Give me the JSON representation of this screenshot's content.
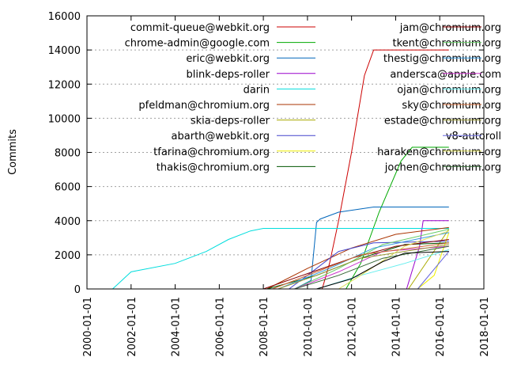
{
  "chart_data": {
    "type": "line",
    "title": "",
    "xlabel": "",
    "ylabel": "Commits",
    "xlim": [
      "2000-01-01",
      "2018-01-01"
    ],
    "ylim": [
      0,
      16000
    ],
    "x_ticks": [
      "2000-01-01",
      "2002-01-01",
      "2004-01-01",
      "2006-01-01",
      "2008-01-01",
      "2010-01-01",
      "2012-01-01",
      "2014-01-01",
      "2016-01-01",
      "2018-01-01"
    ],
    "y_ticks": [
      0,
      2000,
      4000,
      6000,
      8000,
      10000,
      12000,
      14000,
      16000
    ],
    "grid": "horizontal",
    "legend_placement": "top, two columns",
    "series": [
      {
        "name": "commit-queue@webkit.org",
        "color": "#cc0000",
        "points": [
          [
            "2010-09-01",
            0
          ],
          [
            "2011-01-01",
            1500
          ],
          [
            "2011-06-01",
            4000
          ],
          [
            "2012-01-01",
            8000
          ],
          [
            "2012-08-01",
            12500
          ],
          [
            "2013-01-01",
            14000
          ],
          [
            "2016-06-01",
            14000
          ]
        ]
      },
      {
        "name": "chrome-admin@google.com",
        "color": "#00aa00",
        "points": [
          [
            "2011-10-01",
            0
          ],
          [
            "2012-06-01",
            1500
          ],
          [
            "2013-04-01",
            4500
          ],
          [
            "2014-04-01",
            7500
          ],
          [
            "2014-10-01",
            8300
          ],
          [
            "2016-06-01",
            8300
          ]
        ]
      },
      {
        "name": "eric@webkit.org",
        "color": "#0066bb",
        "points": [
          [
            "2009-06-01",
            0
          ],
          [
            "2010-03-01",
            500
          ],
          [
            "2010-06-01",
            3900
          ],
          [
            "2010-08-01",
            4100
          ],
          [
            "2011-06-01",
            4500
          ],
          [
            "2013-01-01",
            4800
          ],
          [
            "2016-06-01",
            4800
          ]
        ]
      },
      {
        "name": "blink-deps-roller",
        "color": "#9900cc",
        "points": [
          [
            "2014-07-01",
            0
          ],
          [
            "2015-02-01",
            2500
          ],
          [
            "2015-04-01",
            4000
          ],
          [
            "2016-06-01",
            4000
          ]
        ]
      },
      {
        "name": "darin",
        "color": "#00dddd",
        "points": [
          [
            "2001-03-01",
            0
          ],
          [
            "2001-06-01",
            300
          ],
          [
            "2002-01-01",
            1000
          ],
          [
            "2004-01-01",
            1500
          ],
          [
            "2005-06-01",
            2200
          ],
          [
            "2006-06-01",
            2900
          ],
          [
            "2007-06-01",
            3400
          ],
          [
            "2008-01-01",
            3550
          ],
          [
            "2016-06-01",
            3550
          ]
        ]
      },
      {
        "name": "pfeldman@chromium.org",
        "color": "#aa3300",
        "points": [
          [
            "2008-03-01",
            0
          ],
          [
            "2010-01-01",
            1200
          ],
          [
            "2012-01-01",
            2400
          ],
          [
            "2014-01-01",
            3200
          ],
          [
            "2016-06-01",
            3600
          ]
        ]
      },
      {
        "name": "skia-deps-roller",
        "color": "#aaaa00",
        "points": [
          [
            "2014-08-01",
            0
          ],
          [
            "2016-06-01",
            3500
          ]
        ]
      },
      {
        "name": "abarth@webkit.org",
        "color": "#4444cc",
        "points": [
          [
            "2009-03-01",
            0
          ],
          [
            "2010-01-01",
            800
          ],
          [
            "2011-06-01",
            2200
          ],
          [
            "2013-01-01",
            2700
          ],
          [
            "2016-06-01",
            2800
          ]
        ]
      },
      {
        "name": "tfarina@chromium.org",
        "color": "#eeee00",
        "points": [
          [
            "2015-01-01",
            0
          ],
          [
            "2015-10-01",
            800
          ],
          [
            "2016-06-01",
            3300
          ]
        ]
      },
      {
        "name": "thakis@chromium.org",
        "color": "#005500",
        "points": [
          [
            "2008-03-01",
            0
          ],
          [
            "2010-06-01",
            800
          ],
          [
            "2012-06-01",
            1800
          ],
          [
            "2014-06-01",
            2600
          ],
          [
            "2016-06-01",
            2700
          ]
        ]
      },
      {
        "name": "jam@chromium.org",
        "color": "#880000",
        "points": [
          [
            "2008-01-01",
            0
          ],
          [
            "2010-01-01",
            900
          ],
          [
            "2012-01-01",
            1800
          ],
          [
            "2014-01-01",
            2500
          ],
          [
            "2016-06-01",
            2900
          ]
        ]
      },
      {
        "name": "tkent@chromium.org",
        "color": "#66cc66",
        "points": [
          [
            "2009-06-01",
            0
          ],
          [
            "2011-06-01",
            1200
          ],
          [
            "2013-06-01",
            2600
          ],
          [
            "2016-06-01",
            3500
          ]
        ]
      },
      {
        "name": "thestig@chromium.org",
        "color": "#3399dd",
        "points": [
          [
            "2008-09-01",
            0
          ],
          [
            "2011-01-01",
            1200
          ],
          [
            "2013-01-01",
            2400
          ],
          [
            "2016-06-01",
            3300
          ]
        ]
      },
      {
        "name": "andersca@apple.com",
        "color": "#cc33cc",
        "points": [
          [
            "2009-06-01",
            0
          ],
          [
            "2011-06-01",
            1000
          ],
          [
            "2013-06-01",
            2200
          ],
          [
            "2016-06-01",
            2500
          ]
        ]
      },
      {
        "name": "ojan@chromium.org",
        "color": "#66eeee",
        "points": [
          [
            "2010-06-01",
            0
          ],
          [
            "2012-06-01",
            800
          ],
          [
            "2014-06-01",
            1500
          ],
          [
            "2016-06-01",
            2300
          ]
        ]
      },
      {
        "name": "sky@chromium.org",
        "color": "#cc6633",
        "points": [
          [
            "2008-06-01",
            0
          ],
          [
            "2010-06-01",
            1000
          ],
          [
            "2012-06-01",
            2000
          ],
          [
            "2016-06-01",
            2700
          ]
        ]
      },
      {
        "name": "estade@chromium.org",
        "color": "#999933",
        "points": [
          [
            "2008-09-01",
            0
          ],
          [
            "2010-06-01",
            800
          ],
          [
            "2012-06-01",
            1800
          ],
          [
            "2016-06-01",
            2600
          ]
        ]
      },
      {
        "name": "v8-autoroll",
        "color": "#6666dd",
        "points": [
          [
            "2015-01-01",
            0
          ],
          [
            "2016-06-01",
            2200
          ]
        ]
      },
      {
        "name": "haraken@chromium.org",
        "color": "#dddd55",
        "points": [
          [
            "2011-06-01",
            0
          ],
          [
            "2012-06-01",
            800
          ],
          [
            "2014-06-01",
            2500
          ],
          [
            "2016-06-01",
            3400
          ]
        ]
      },
      {
        "name": "jochen@chromium.org",
        "color": "#336633",
        "points": [
          [
            "2009-06-01",
            0
          ],
          [
            "2011-06-01",
            800
          ],
          [
            "2013-06-01",
            1800
          ],
          [
            "2016-06-01",
            2500
          ]
        ]
      },
      {
        "name": "",
        "color": "#000000",
        "points": [
          [
            "2010-06-01",
            0
          ],
          [
            "2012-01-01",
            600
          ],
          [
            "2013-06-01",
            1600
          ],
          [
            "2014-06-01",
            2100
          ],
          [
            "2016-06-01",
            2200
          ]
        ]
      }
    ]
  }
}
